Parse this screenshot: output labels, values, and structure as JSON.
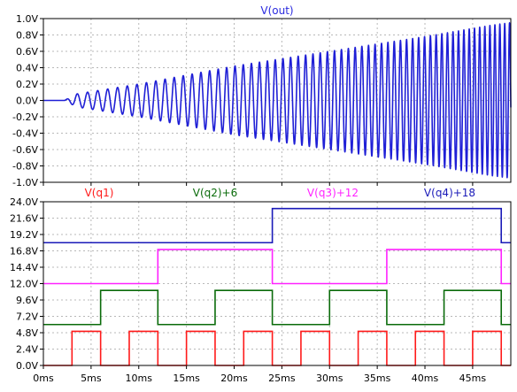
{
  "chart_data": [
    {
      "type": "line",
      "title": "V(out)",
      "title_color": "#2a2adf",
      "xlabel": "",
      "ylabel": "",
      "xlim": [
        0,
        49
      ],
      "ylim": [
        -1.0,
        1.0
      ],
      "grid": true,
      "x_ticks": [
        "0ms",
        "5ms",
        "10ms",
        "15ms",
        "20ms",
        "25ms",
        "30ms",
        "35ms",
        "40ms",
        "45ms"
      ],
      "x_tick_values": [
        0,
        5,
        10,
        15,
        20,
        25,
        30,
        35,
        40,
        45
      ],
      "y_ticks": [
        "1.0V",
        "0.8V",
        "0.6V",
        "0.4V",
        "0.2V",
        "0.0V",
        "-0.2V",
        "-0.4V",
        "-0.6V",
        "-0.8V",
        "-1.0V"
      ],
      "y_tick_values": [
        1.0,
        0.8,
        0.6,
        0.4,
        0.2,
        0.0,
        -0.2,
        -0.4,
        -0.6,
        -0.8,
        -1.0
      ],
      "series": [
        {
          "name": "V(out)",
          "color": "#1f1fd6",
          "kind": "chirp",
          "start_ms": 2.2,
          "end_ms": 49,
          "start_period_ms": 1.1,
          "end_period_ms": 0.5,
          "envelope": [
            [
              2.2,
              0.0
            ],
            [
              3.5,
              0.08
            ],
            [
              10,
              0.2
            ],
            [
              20,
              0.42
            ],
            [
              30,
              0.6
            ],
            [
              40,
              0.78
            ],
            [
              47,
              0.92
            ],
            [
              49,
              0.95
            ]
          ]
        }
      ]
    },
    {
      "type": "line",
      "title": "",
      "xlabel": "",
      "ylabel": "",
      "xlim": [
        0,
        49
      ],
      "ylim": [
        0,
        24
      ],
      "grid": true,
      "x_ticks": [
        "0ms",
        "5ms",
        "10ms",
        "15ms",
        "20ms",
        "25ms",
        "30ms",
        "35ms",
        "40ms",
        "45ms"
      ],
      "x_tick_values": [
        0,
        5,
        10,
        15,
        20,
        25,
        30,
        35,
        40,
        45
      ],
      "y_ticks": [
        "24.0V",
        "21.6V",
        "19.2V",
        "16.8V",
        "14.4V",
        "12.0V",
        "9.6V",
        "7.2V",
        "4.8V",
        "2.4V",
        "0.0V"
      ],
      "y_tick_values": [
        24.0,
        21.6,
        19.2,
        16.8,
        14.4,
        12.0,
        9.6,
        7.2,
        4.8,
        2.4,
        0.0
      ],
      "series": [
        {
          "name": "V(q1)",
          "color": "#ff1a1a",
          "low": 0,
          "high": 5,
          "edges": [
            3,
            6,
            9,
            12,
            15,
            18,
            21,
            24,
            27,
            30,
            33,
            36,
            39,
            42,
            45,
            48
          ]
        },
        {
          "name": "V(q2)+6",
          "color": "#0a6b0a",
          "low": 6,
          "high": 11,
          "edges": [
            6,
            12,
            18,
            24,
            30,
            36,
            42,
            48
          ]
        },
        {
          "name": "V(q3)+12",
          "color": "#ff22ff",
          "low": 12,
          "high": 17,
          "edges": [
            12,
            24,
            36,
            48
          ]
        },
        {
          "name": "V(q4)+18",
          "color": "#1a1ab8",
          "low": 18,
          "high": 23,
          "edges": [
            24,
            48
          ]
        }
      ]
    }
  ]
}
